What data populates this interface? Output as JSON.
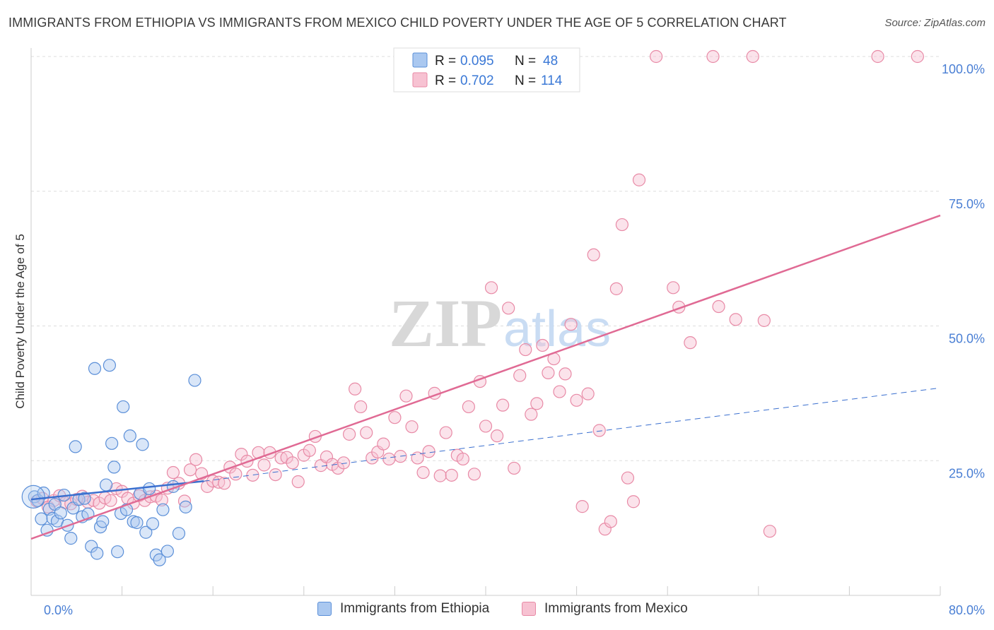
{
  "header": {
    "title": "IMMIGRANTS FROM ETHIOPIA VS IMMIGRANTS FROM MEXICO CHILD POVERTY UNDER THE AGE OF 5 CORRELATION CHART",
    "source": "Source: ZipAtlas.com"
  },
  "watermark": {
    "zip": "ZIP",
    "atlas": "atlas"
  },
  "colors": {
    "ethiopia_fill": "#aac8f0",
    "ethiopia_stroke": "#5b8fd8",
    "ethiopia_line": "#3a6fcf",
    "mexico_fill": "#f7c2d2",
    "mexico_stroke": "#e88aa6",
    "mexico_line": "#e06a94",
    "grid": "#dddddd",
    "tick_text": "#4a7fd4"
  },
  "legend": {
    "ethiopia": {
      "r_label": "R = ",
      "r_value": "0.095",
      "n_label": "N = ",
      "n_value": "48"
    },
    "mexico": {
      "r_label": "R = ",
      "r_value": "0.702",
      "n_label": "N = ",
      "n_value": "114"
    }
  },
  "chart_data": {
    "type": "scatter",
    "title": "IMMIGRANTS FROM ETHIOPIA VS IMMIGRANTS FROM MEXICO CHILD POVERTY UNDER THE AGE OF 5 CORRELATION CHART",
    "xlabel": "",
    "ylabel": "Child Poverty Under the Age of 5",
    "xlim": [
      0,
      80
    ],
    "ylim": [
      0,
      100
    ],
    "x_tick_labels": [
      "0.0%",
      "80.0%"
    ],
    "y_tick_labels": [
      "25.0%",
      "50.0%",
      "75.0%",
      "100.0%"
    ],
    "y_ticks": [
      25,
      50,
      75,
      100
    ],
    "grid": true,
    "series": [
      {
        "name": "Immigrants from Ethiopia",
        "r": 0.095,
        "n": 48,
        "trend": {
          "x0": 0,
          "y0": 17.8,
          "x1": 15.2,
          "y1": 21.2,
          "dashed_to_x": 80,
          "dashed_to_y": 38.5
        },
        "points": [
          [
            0.3,
            18.3
          ],
          [
            0.6,
            17.6
          ],
          [
            0.9,
            14.2
          ],
          [
            1.1,
            19.0
          ],
          [
            1.4,
            12.1
          ],
          [
            1.6,
            16.0
          ],
          [
            1.9,
            14.3
          ],
          [
            2.1,
            16.9
          ],
          [
            2.3,
            13.8
          ],
          [
            2.6,
            15.3
          ],
          [
            2.9,
            18.6
          ],
          [
            3.2,
            13.0
          ],
          [
            3.5,
            10.6
          ],
          [
            3.7,
            16.2
          ],
          [
            3.9,
            27.6
          ],
          [
            4.2,
            17.8
          ],
          [
            4.5,
            14.6
          ],
          [
            4.7,
            18.0
          ],
          [
            5.0,
            15.1
          ],
          [
            5.3,
            9.1
          ],
          [
            5.6,
            42.1
          ],
          [
            5.8,
            7.8
          ],
          [
            6.1,
            12.7
          ],
          [
            6.3,
            13.7
          ],
          [
            6.6,
            20.5
          ],
          [
            6.9,
            42.7
          ],
          [
            7.1,
            28.2
          ],
          [
            7.3,
            23.8
          ],
          [
            7.6,
            8.1
          ],
          [
            7.9,
            15.2
          ],
          [
            8.1,
            35.0
          ],
          [
            8.4,
            15.9
          ],
          [
            8.7,
            29.6
          ],
          [
            9.0,
            13.7
          ],
          [
            9.3,
            13.5
          ],
          [
            9.6,
            18.9
          ],
          [
            9.8,
            28.0
          ],
          [
            10.1,
            11.7
          ],
          [
            10.4,
            19.8
          ],
          [
            10.7,
            13.3
          ],
          [
            11.0,
            7.5
          ],
          [
            11.3,
            6.6
          ],
          [
            11.6,
            15.9
          ],
          [
            12.0,
            8.2
          ],
          [
            12.5,
            20.2
          ],
          [
            13.0,
            11.5
          ],
          [
            13.6,
            16.4
          ],
          [
            14.4,
            39.9
          ]
        ]
      },
      {
        "name": "Immigrants from Mexico",
        "r": 0.702,
        "n": 114,
        "trend": {
          "x0": 0,
          "y0": 10.5,
          "x1": 80,
          "y1": 70.5
        },
        "points": [
          [
            0.5,
            17.5
          ],
          [
            1.0,
            18.0
          ],
          [
            1.5,
            16.4
          ],
          [
            2.0,
            17.6
          ],
          [
            2.5,
            18.5
          ],
          [
            3.0,
            17.2
          ],
          [
            3.5,
            17.0
          ],
          [
            4.0,
            17.8
          ],
          [
            4.5,
            18.4
          ],
          [
            5.0,
            17.3
          ],
          [
            5.5,
            17.6
          ],
          [
            6.0,
            17.1
          ],
          [
            6.5,
            18.1
          ],
          [
            7.0,
            17.6
          ],
          [
            7.5,
            19.8
          ],
          [
            8.0,
            19.3
          ],
          [
            8.5,
            18.0
          ],
          [
            9.0,
            17.1
          ],
          [
            9.5,
            18.5
          ],
          [
            10.0,
            17.6
          ],
          [
            10.5,
            18.3
          ],
          [
            11.0,
            18.4
          ],
          [
            11.5,
            17.7
          ],
          [
            12.0,
            19.9
          ],
          [
            12.5,
            22.8
          ],
          [
            13.0,
            20.8
          ],
          [
            13.5,
            17.5
          ],
          [
            14.0,
            23.3
          ],
          [
            14.5,
            25.2
          ],
          [
            15.0,
            22.6
          ],
          [
            15.5,
            20.2
          ],
          [
            16.0,
            21.2
          ],
          [
            16.5,
            21.0
          ],
          [
            17.0,
            20.8
          ],
          [
            17.5,
            23.8
          ],
          [
            18.0,
            22.5
          ],
          [
            18.5,
            26.2
          ],
          [
            19.0,
            24.9
          ],
          [
            19.5,
            22.3
          ],
          [
            20.0,
            26.5
          ],
          [
            20.5,
            24.2
          ],
          [
            21.0,
            26.5
          ],
          [
            21.5,
            22.4
          ],
          [
            22.0,
            25.5
          ],
          [
            22.5,
            25.6
          ],
          [
            23.0,
            24.6
          ],
          [
            23.5,
            21.1
          ],
          [
            24.0,
            26.0
          ],
          [
            24.5,
            26.9
          ],
          [
            25.0,
            29.5
          ],
          [
            25.5,
            24.1
          ],
          [
            26.0,
            25.7
          ],
          [
            26.5,
            24.3
          ],
          [
            27.0,
            23.6
          ],
          [
            27.5,
            24.6
          ],
          [
            28.0,
            29.9
          ],
          [
            28.5,
            38.3
          ],
          [
            29.0,
            35.0
          ],
          [
            29.5,
            30.2
          ],
          [
            30.0,
            25.5
          ],
          [
            30.5,
            26.6
          ],
          [
            31.0,
            28.1
          ],
          [
            31.5,
            25.3
          ],
          [
            32.0,
            33.0
          ],
          [
            32.5,
            25.8
          ],
          [
            33.0,
            37.0
          ],
          [
            33.5,
            31.3
          ],
          [
            34.0,
            25.5
          ],
          [
            34.5,
            22.8
          ],
          [
            35.0,
            26.7
          ],
          [
            35.5,
            37.5
          ],
          [
            36.0,
            22.2
          ],
          [
            36.5,
            30.2
          ],
          [
            37.0,
            22.3
          ],
          [
            37.5,
            26.0
          ],
          [
            38.0,
            25.3
          ],
          [
            38.5,
            35.0
          ],
          [
            39.0,
            22.5
          ],
          [
            39.5,
            39.7
          ],
          [
            40.0,
            31.4
          ],
          [
            40.5,
            57.1
          ],
          [
            41.0,
            29.6
          ],
          [
            41.5,
            35.3
          ],
          [
            42.0,
            53.3
          ],
          [
            42.5,
            23.6
          ],
          [
            43.0,
            40.8
          ],
          [
            43.5,
            45.6
          ],
          [
            44.0,
            33.6
          ],
          [
            44.5,
            35.6
          ],
          [
            45.0,
            46.4
          ],
          [
            45.5,
            41.3
          ],
          [
            46.0,
            43.9
          ],
          [
            46.5,
            37.8
          ],
          [
            47.0,
            41.1
          ],
          [
            47.5,
            50.3
          ],
          [
            48.0,
            36.2
          ],
          [
            48.5,
            16.5
          ],
          [
            49.0,
            37.4
          ],
          [
            49.5,
            63.2
          ],
          [
            50.0,
            30.6
          ],
          [
            50.5,
            12.3
          ],
          [
            51.0,
            13.7
          ],
          [
            51.5,
            56.9
          ],
          [
            52.0,
            68.8
          ],
          [
            52.5,
            21.8
          ],
          [
            53.0,
            17.4
          ],
          [
            53.5,
            77.1
          ],
          [
            55.0,
            100.0
          ],
          [
            56.5,
            57.1
          ],
          [
            57.0,
            53.5
          ],
          [
            58.0,
            46.9
          ],
          [
            60.0,
            100.0
          ],
          [
            60.5,
            53.6
          ],
          [
            62.0,
            51.2
          ],
          [
            63.5,
            100.0
          ],
          [
            64.5,
            51.0
          ],
          [
            65.0,
            11.9
          ],
          [
            74.5,
            100.0
          ],
          [
            78.0,
            100.0
          ]
        ]
      }
    ]
  },
  "bottom_legend": {
    "ethiopia_label": "Immigrants from Ethiopia",
    "mexico_label": "Immigrants from Mexico"
  }
}
